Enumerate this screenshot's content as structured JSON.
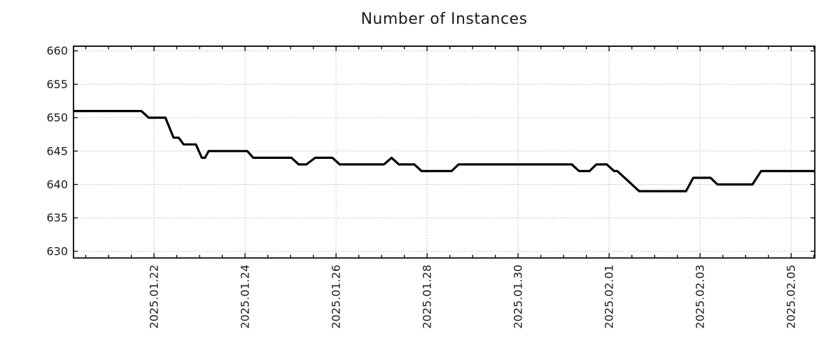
{
  "style": {
    "background": "#ffffff",
    "title_color": "#1a1a1a",
    "text_color": "#1c1c1c",
    "axis_color": "#000000",
    "grid_color": "#9a9a9a"
  },
  "chart_data": {
    "type": "line",
    "title": "Number of Instances",
    "xlabel": "",
    "ylabel": "",
    "legend": "none",
    "grid": true,
    "x_unit": "day index on a Jan-Feb 2025 timeline (22 = 2025.01.22, 36 = 2025.02.05)",
    "xlim": [
      20.23,
      36.52
    ],
    "ylim": [
      629.0,
      660.7
    ],
    "y_ticks": [
      630,
      635,
      640,
      645,
      650,
      655,
      660
    ],
    "x_major_ticks": [
      {
        "pos": 22,
        "label": "2025.01.22"
      },
      {
        "pos": 24,
        "label": "2025.01.24"
      },
      {
        "pos": 26,
        "label": "2025.01.26"
      },
      {
        "pos": 28,
        "label": "2025.01.28"
      },
      {
        "pos": 30,
        "label": "2025.01.30"
      },
      {
        "pos": 32,
        "label": "2025.02.01"
      },
      {
        "pos": 34,
        "label": "2025.02.03"
      },
      {
        "pos": 36,
        "label": "2025.02.05"
      }
    ],
    "x_minor_tick_step": 0.5,
    "series": [
      {
        "name": "instances",
        "color": "#000000",
        "points": [
          [
            20.23,
            651
          ],
          [
            21.72,
            651
          ],
          [
            21.88,
            650
          ],
          [
            22.25,
            650
          ],
          [
            22.43,
            647
          ],
          [
            22.54,
            647
          ],
          [
            22.65,
            646
          ],
          [
            22.92,
            646
          ],
          [
            23.05,
            644
          ],
          [
            23.12,
            644
          ],
          [
            23.2,
            645
          ],
          [
            24.05,
            645
          ],
          [
            24.18,
            644
          ],
          [
            25.02,
            644
          ],
          [
            25.18,
            643
          ],
          [
            25.35,
            643
          ],
          [
            25.54,
            644
          ],
          [
            25.92,
            644
          ],
          [
            26.08,
            643
          ],
          [
            27.05,
            643
          ],
          [
            27.22,
            644
          ],
          [
            27.38,
            643
          ],
          [
            27.72,
            643
          ],
          [
            27.88,
            642
          ],
          [
            28.54,
            642
          ],
          [
            28.69,
            643
          ],
          [
            31.18,
            643
          ],
          [
            31.34,
            642
          ],
          [
            31.57,
            642
          ],
          [
            31.72,
            643
          ],
          [
            31.95,
            643
          ],
          [
            32.11,
            642
          ],
          [
            32.18,
            642
          ],
          [
            32.66,
            639
          ],
          [
            33.69,
            639
          ],
          [
            33.85,
            641
          ],
          [
            34.23,
            641
          ],
          [
            34.38,
            640
          ],
          [
            35.15,
            640
          ],
          [
            35.34,
            642
          ],
          [
            36.52,
            642
          ]
        ]
      }
    ]
  }
}
